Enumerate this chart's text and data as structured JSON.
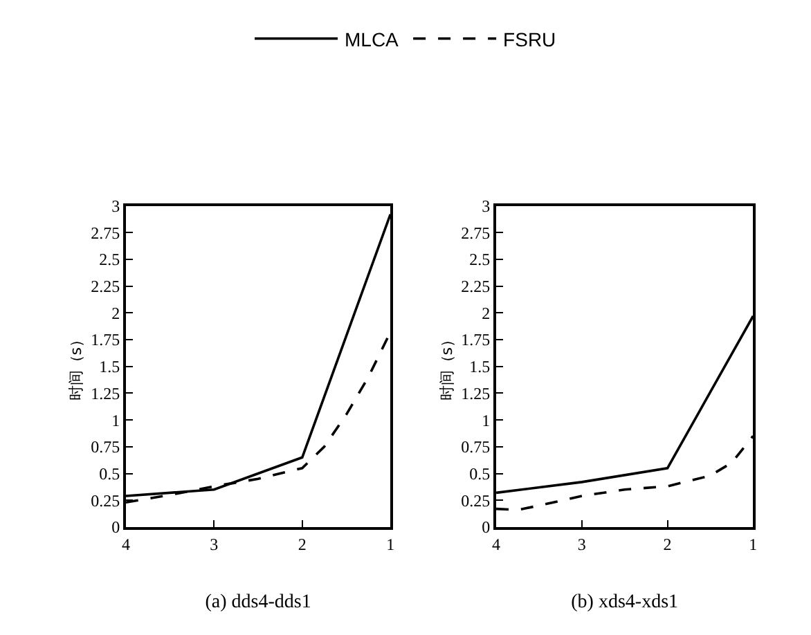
{
  "chart_data": [
    {
      "type": "line",
      "xlabel": "(a) dds4-dds1",
      "ylabel": "时间（s）",
      "xlim": [
        4,
        1
      ],
      "xticks": [
        4,
        3,
        2,
        1
      ],
      "ylim": [
        0,
        3
      ],
      "yticks": [
        0,
        0.25,
        0.5,
        0.75,
        1,
        1.25,
        1.5,
        1.75,
        2,
        2.25,
        2.5,
        2.75,
        3
      ],
      "legend": "top",
      "marker": "none",
      "series": [
        {
          "name": "MLCA",
          "color": "#000000",
          "line_style": "solid",
          "x": [
            4,
            3,
            2,
            1
          ],
          "values": [
            0.29,
            0.35,
            0.65,
            2.92
          ]
        },
        {
          "name": "FSRU",
          "color": "#000000",
          "line_style": "dashed",
          "x": [
            4,
            3.5,
            3,
            2.5,
            2,
            1.75,
            1.5,
            1.25,
            1
          ],
          "values": [
            0.23,
            0.3,
            0.38,
            0.45,
            0.55,
            0.75,
            1.05,
            1.4,
            1.82
          ]
        }
      ]
    },
    {
      "type": "line",
      "xlabel": "(b) xds4-xds1",
      "ylabel": "时间（s）",
      "xlim": [
        4,
        1
      ],
      "xticks": [
        4,
        3,
        2,
        1
      ],
      "ylim": [
        0,
        3
      ],
      "yticks": [
        0,
        0.25,
        0.5,
        0.75,
        1,
        1.25,
        1.5,
        1.75,
        2,
        2.25,
        2.5,
        2.75,
        3
      ],
      "legend": false,
      "marker": "none",
      "series": [
        {
          "color": "#000000",
          "line_style": "solid",
          "x": [
            4,
            3,
            2,
            1
          ],
          "values": [
            0.32,
            0.42,
            0.55,
            1.97
          ]
        },
        {
          "color": "#000000",
          "line_style": "dashed",
          "x": [
            4,
            3.75,
            3.5,
            3,
            2.5,
            2,
            1.5,
            1.25,
            1
          ],
          "values": [
            0.17,
            0.16,
            0.2,
            0.29,
            0.35,
            0.38,
            0.48,
            0.6,
            0.85
          ]
        }
      ]
    }
  ]
}
